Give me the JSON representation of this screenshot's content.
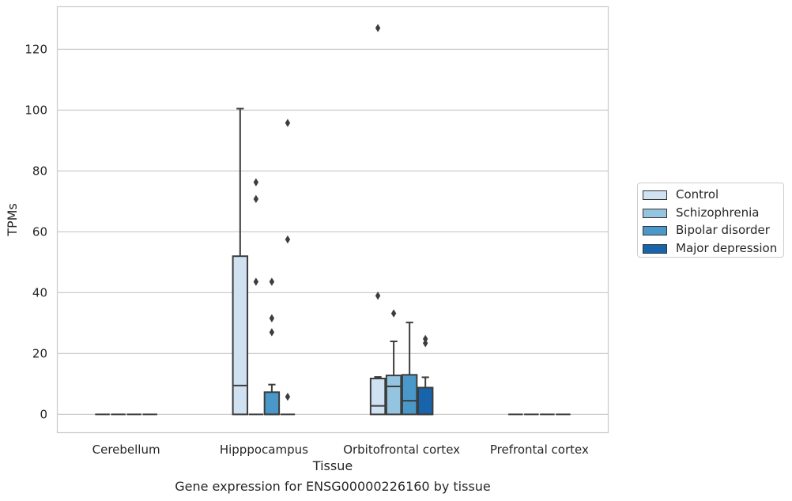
{
  "chart_data": {
    "type": "box",
    "title": "Gene expression for ENSG00000226160 by tissue",
    "xlabel": "Tissue",
    "ylabel": "TPMs",
    "ylim": [
      -6,
      134
    ],
    "yticks": [
      0,
      20,
      40,
      60,
      80,
      100,
      120
    ],
    "grid": true,
    "legend_position": "right",
    "categories": [
      "Cerebellum",
      "Hipppocampus",
      "Orbitofrontal cortex",
      "Prefrontal cortex"
    ],
    "series": [
      {
        "name": "Control",
        "color": "#d0e1f2",
        "boxes": [
          {
            "q1": 0,
            "median": 0,
            "q3": 0,
            "whisker_low": 0,
            "whisker_high": 0,
            "outliers": []
          },
          {
            "q1": 0,
            "median": 9.5,
            "q3": 52,
            "whisker_low": 0,
            "whisker_high": 100.5,
            "outliers": []
          },
          {
            "q1": 0,
            "median": 2.8,
            "q3": 11.8,
            "whisker_low": 0,
            "whisker_high": 12.3,
            "outliers": [
              127,
              39
            ]
          },
          {
            "q1": 0,
            "median": 0,
            "q3": 0,
            "whisker_low": 0,
            "whisker_high": 0,
            "outliers": []
          }
        ]
      },
      {
        "name": "Schizophrenia",
        "color": "#94c4df",
        "boxes": [
          {
            "q1": 0,
            "median": 0,
            "q3": 0,
            "whisker_low": 0,
            "whisker_high": 0,
            "outliers": []
          },
          {
            "q1": 0,
            "median": 0,
            "q3": 0,
            "whisker_low": 0,
            "whisker_high": 0,
            "outliers": [
              76.3,
              70.8,
              43.6
            ]
          },
          {
            "q1": 0,
            "median": 9.2,
            "q3": 12.8,
            "whisker_low": 0,
            "whisker_high": 24,
            "outliers": [
              33.2
            ]
          },
          {
            "q1": 0,
            "median": 0,
            "q3": 0,
            "whisker_low": 0,
            "whisker_high": 0,
            "outliers": []
          }
        ]
      },
      {
        "name": "Bipolar disorder",
        "color": "#4a98c9",
        "boxes": [
          {
            "q1": 0,
            "median": 0,
            "q3": 0,
            "whisker_low": 0,
            "whisker_high": 0,
            "outliers": []
          },
          {
            "q1": 0,
            "median": 0,
            "q3": 7.3,
            "whisker_low": 0,
            "whisker_high": 9.8,
            "outliers": [
              43.6,
              31.6,
              27
            ]
          },
          {
            "q1": 0,
            "median": 4.5,
            "q3": 13,
            "whisker_low": 0,
            "whisker_high": 30.2,
            "outliers": []
          },
          {
            "q1": 0,
            "median": 0,
            "q3": 0,
            "whisker_low": 0,
            "whisker_high": 0,
            "outliers": []
          }
        ]
      },
      {
        "name": "Major depression",
        "color": "#1764ab",
        "boxes": [
          {
            "q1": 0,
            "median": 0,
            "q3": 0,
            "whisker_low": 0,
            "whisker_high": 0,
            "outliers": []
          },
          {
            "q1": 0,
            "median": 0,
            "q3": 0,
            "whisker_low": 0,
            "whisker_high": 0,
            "outliers": [
              95.8,
              57.5,
              5.8
            ]
          },
          {
            "q1": 0,
            "median": 0,
            "q3": 8.8,
            "whisker_low": 0,
            "whisker_high": 12.2,
            "outliers": [
              24.8,
              23.4
            ]
          },
          {
            "q1": 0,
            "median": 0,
            "q3": 0,
            "whisker_low": 0,
            "whisker_high": 0,
            "outliers": []
          }
        ]
      }
    ]
  }
}
